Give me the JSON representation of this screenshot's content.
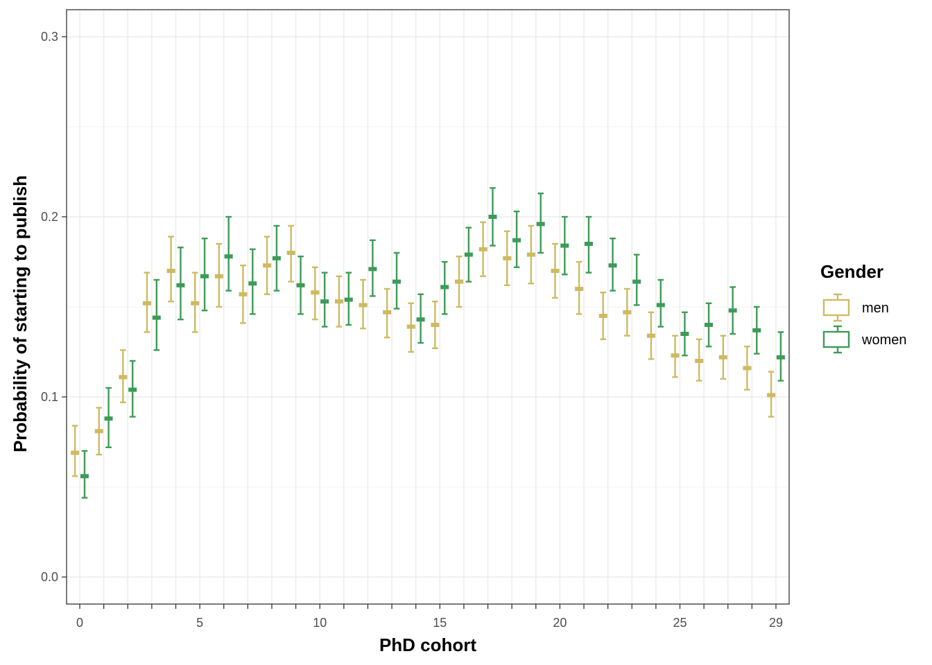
{
  "chart_data": {
    "type": "errorbar",
    "xlabel": "PhD cohort",
    "ylabel": "Probability of starting to publish",
    "xlim": [
      -0.55,
      29.55
    ],
    "ylim": [
      -0.015,
      0.315
    ],
    "x_ticks": [
      0,
      5,
      10,
      15,
      20,
      25,
      29
    ],
    "y_ticks": [
      0.0,
      0.1,
      0.2,
      0.3
    ],
    "y_tick_labels": [
      "0.0",
      "0.1",
      "0.2",
      "0.3"
    ],
    "grid": true,
    "legend": {
      "title": "Gender",
      "position": "right"
    },
    "series": [
      {
        "name": "men",
        "color": "#CDBA62",
        "x": [
          0,
          1,
          2,
          3,
          4,
          5,
          6,
          7,
          8,
          9,
          10,
          11,
          12,
          13,
          14,
          15,
          16,
          17,
          18,
          19,
          20,
          21,
          22,
          23,
          24,
          25,
          26,
          27,
          28,
          29
        ],
        "values": [
          0.069,
          0.081,
          0.111,
          0.152,
          0.17,
          0.152,
          0.167,
          0.157,
          0.173,
          0.18,
          0.158,
          0.153,
          0.151,
          0.147,
          0.139,
          0.14,
          0.164,
          0.182,
          0.177,
          0.179,
          0.17,
          0.16,
          0.145,
          0.147,
          0.134,
          0.123,
          0.12,
          0.122,
          0.116,
          0.101
        ],
        "lower": [
          0.056,
          0.068,
          0.097,
          0.136,
          0.153,
          0.136,
          0.15,
          0.141,
          0.157,
          0.164,
          0.143,
          0.139,
          0.138,
          0.133,
          0.125,
          0.127,
          0.15,
          0.167,
          0.162,
          0.163,
          0.155,
          0.146,
          0.132,
          0.134,
          0.121,
          0.111,
          0.109,
          0.11,
          0.104,
          0.089
        ],
        "upper": [
          0.084,
          0.094,
          0.126,
          0.169,
          0.189,
          0.169,
          0.185,
          0.173,
          0.189,
          0.195,
          0.172,
          0.167,
          0.165,
          0.16,
          0.152,
          0.153,
          0.178,
          0.197,
          0.192,
          0.195,
          0.185,
          0.175,
          0.158,
          0.16,
          0.147,
          0.134,
          0.132,
          0.134,
          0.128,
          0.114
        ]
      },
      {
        "name": "women",
        "color": "#3D9B58",
        "x": [
          0,
          1,
          2,
          3,
          4,
          5,
          6,
          7,
          8,
          9,
          10,
          11,
          12,
          13,
          14,
          15,
          16,
          17,
          18,
          19,
          20,
          21,
          22,
          23,
          24,
          25,
          26,
          27,
          28,
          29
        ],
        "values": [
          0.056,
          0.088,
          0.104,
          0.144,
          0.162,
          0.167,
          0.178,
          0.163,
          0.177,
          0.162,
          0.153,
          0.154,
          0.171,
          0.164,
          0.143,
          0.161,
          0.179,
          0.2,
          0.187,
          0.196,
          0.184,
          0.185,
          0.173,
          0.164,
          0.151,
          0.135,
          0.14,
          0.148,
          0.137,
          0.122
        ],
        "lower": [
          0.044,
          0.072,
          0.089,
          0.126,
          0.143,
          0.148,
          0.159,
          0.146,
          0.159,
          0.146,
          0.139,
          0.14,
          0.156,
          0.149,
          0.13,
          0.146,
          0.164,
          0.184,
          0.172,
          0.18,
          0.168,
          0.169,
          0.159,
          0.151,
          0.139,
          0.123,
          0.128,
          0.135,
          0.124,
          0.109
        ],
        "upper": [
          0.07,
          0.105,
          0.12,
          0.165,
          0.183,
          0.188,
          0.2,
          0.182,
          0.195,
          0.178,
          0.169,
          0.169,
          0.187,
          0.18,
          0.157,
          0.175,
          0.194,
          0.216,
          0.203,
          0.213,
          0.2,
          0.2,
          0.188,
          0.179,
          0.165,
          0.147,
          0.152,
          0.161,
          0.15,
          0.136
        ]
      }
    ]
  }
}
